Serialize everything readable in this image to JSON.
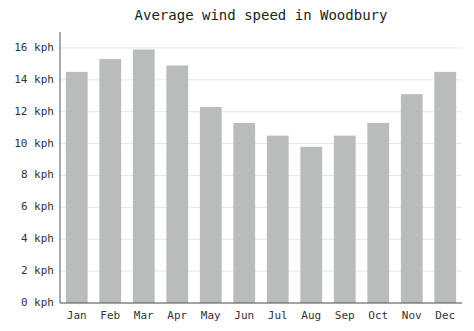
{
  "chart_data": {
    "type": "bar",
    "title": "Average wind speed in Woodbury",
    "categories": [
      "Jan",
      "Feb",
      "Mar",
      "Apr",
      "May",
      "Jun",
      "Jul",
      "Aug",
      "Sep",
      "Oct",
      "Nov",
      "Dec"
    ],
    "values": [
      14.5,
      15.3,
      15.9,
      14.9,
      12.3,
      11.3,
      10.5,
      9.8,
      10.5,
      11.3,
      13.1,
      14.5
    ],
    "color": "#b8bcbc",
    "ylim": [
      0,
      17.0
    ],
    "yticks": [
      {
        "value": 0,
        "label": "0 kph"
      },
      {
        "value": 2,
        "label": "2 kph"
      },
      {
        "value": 4,
        "label": "4 kph"
      },
      {
        "value": 6,
        "label": "6 kph"
      },
      {
        "value": 8,
        "label": "8 kph"
      },
      {
        "value": 10,
        "label": "10 kph"
      },
      {
        "value": 12,
        "label": "12 kph"
      },
      {
        "value": 14,
        "label": "14 kph"
      },
      {
        "value": 16,
        "label": "16 kph"
      }
    ],
    "grid": true
  }
}
